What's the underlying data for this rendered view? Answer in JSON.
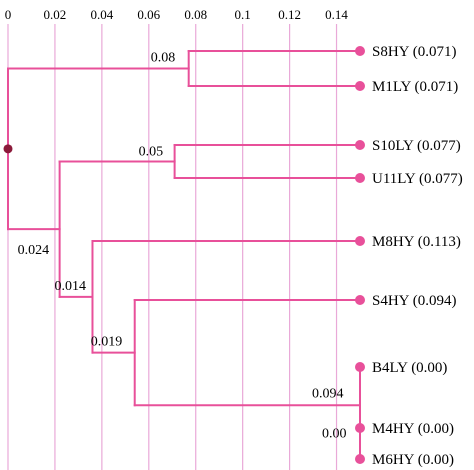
{
  "chart_data": {
    "type": "dendrogram",
    "x_axis": {
      "ticks": [
        0,
        0.02,
        0.04,
        0.06,
        0.08,
        0.1,
        0.12,
        0.14
      ],
      "tick_labels": [
        "0",
        "0.02",
        "0.04",
        "0.06",
        "0.08",
        "0.1",
        "0.12",
        "0.14"
      ],
      "range": [
        0,
        0.15
      ],
      "position": "top",
      "grid": true
    },
    "leaves": [
      {
        "name": "S8HY",
        "value_label": "S8HY (0.071)"
      },
      {
        "name": "M1LY",
        "value_label": "M1LY (0.071)"
      },
      {
        "name": "S10LY",
        "value_label": "S10LY (0.077)"
      },
      {
        "name": "U11LY",
        "value_label": "U11LY (0.077)"
      },
      {
        "name": "M8HY",
        "value_label": "M8HY (0.113)"
      },
      {
        "name": "S4HY",
        "value_label": "S4HY (0.094)"
      },
      {
        "name": "B4LY",
        "value_label": "B4LY (0.00)"
      },
      {
        "name": "M4HY",
        "value_label": "M4HY (0.00)"
      },
      {
        "name": "M6HY",
        "value_label": "M6HY (0.00)"
      }
    ],
    "nodes": [
      {
        "id": "n_m4_m6",
        "x": 0.15,
        "label": "0.00",
        "children": [
          "M4HY",
          "M6HY"
        ]
      },
      {
        "id": "n_b4",
        "x": 0.15,
        "label": "0.094",
        "children": [
          "B4LY",
          "n_m4_m6"
        ]
      },
      {
        "id": "n_s4",
        "x": 0.054,
        "label": "0.019",
        "children": [
          "S4HY",
          "n_b4"
        ]
      },
      {
        "id": "n_m8",
        "x": 0.036,
        "label": "0.014",
        "children": [
          "M8HY",
          "n_s4"
        ]
      },
      {
        "id": "n_s8",
        "x": 0.077,
        "label": "0.08",
        "children": [
          "S8HY",
          "M1LY"
        ]
      },
      {
        "id": "n_s10",
        "x": 0.071,
        "label": "0.05",
        "children": [
          "S10LY",
          "U11LY"
        ]
      },
      {
        "id": "n_mid",
        "x": 0.022,
        "label": "0.024",
        "children": [
          "n_s10",
          "n_m8"
        ]
      },
      {
        "id": "root",
        "x": 0,
        "label": "",
        "children": [
          "n_s8",
          "n_mid"
        ]
      }
    ],
    "colors": {
      "branch": "#e8509a",
      "grid": "#e9a9d8",
      "leaf_dot": "#e8509a",
      "root_dot": "#8b1a3a"
    }
  }
}
